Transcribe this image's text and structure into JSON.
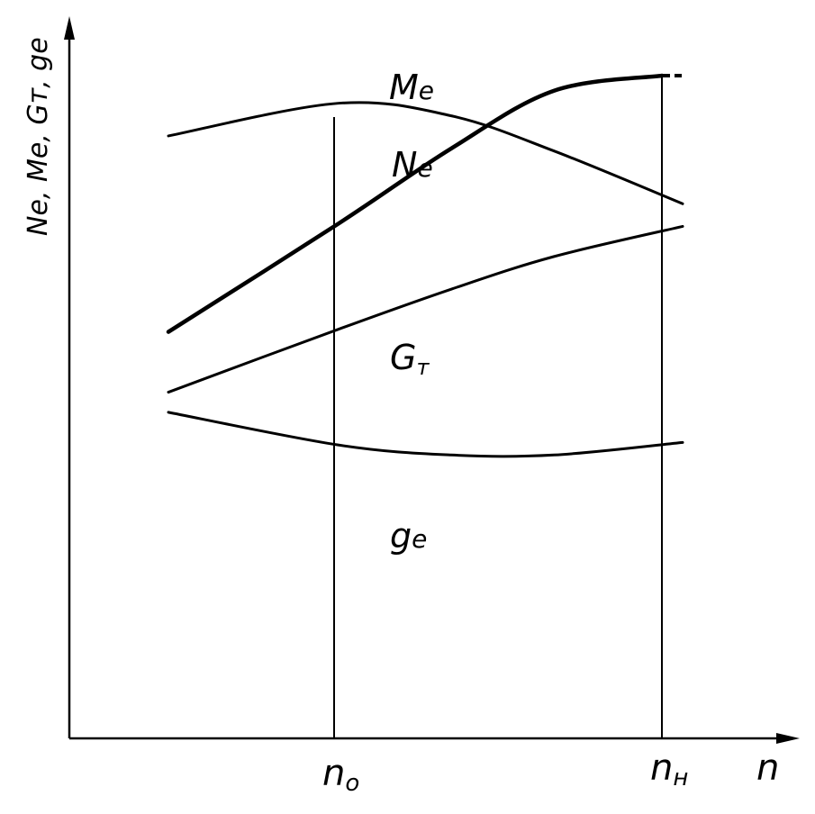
{
  "chart_data": {
    "type": "line",
    "ylabel": "Ne, Me, Gт, ge",
    "xlabel": "n",
    "x_markers": [
      "n0",
      "nн"
    ],
    "x_marker_display": [
      {
        "main": "n",
        "sub": "o"
      },
      {
        "main": "n",
        "sub": "н"
      }
    ],
    "series": [
      {
        "name": "Me",
        "label": {
          "main": "M",
          "sub": "e"
        },
        "points": [
          [
            0.0,
            0.88
          ],
          [
            0.33,
            0.945
          ],
          [
            0.55,
            0.92
          ],
          [
            0.75,
            0.85
          ],
          [
            1.0,
            0.745
          ]
        ]
      },
      {
        "name": "Ne",
        "label": {
          "main": "N",
          "sub": "e"
        },
        "points": [
          [
            0.0,
            0.49
          ],
          [
            0.33,
            0.705
          ],
          [
            0.55,
            0.855
          ],
          [
            0.75,
            0.97
          ],
          [
            0.96,
            1.0
          ]
        ]
      },
      {
        "name": "Gт",
        "label": {
          "main": "G",
          "sub": "т"
        },
        "points": [
          [
            0.0,
            0.37
          ],
          [
            0.33,
            0.495
          ],
          [
            0.55,
            0.575
          ],
          [
            0.75,
            0.64
          ],
          [
            1.0,
            0.7
          ]
        ]
      },
      {
        "name": "ge",
        "label": {
          "main": "g",
          "sub": "e"
        },
        "points": [
          [
            0.0,
            0.33
          ],
          [
            0.33,
            0.265
          ],
          [
            0.55,
            0.245
          ],
          [
            0.75,
            0.245
          ],
          [
            1.0,
            0.27
          ]
        ]
      }
    ],
    "grid": false,
    "legend": "none"
  }
}
